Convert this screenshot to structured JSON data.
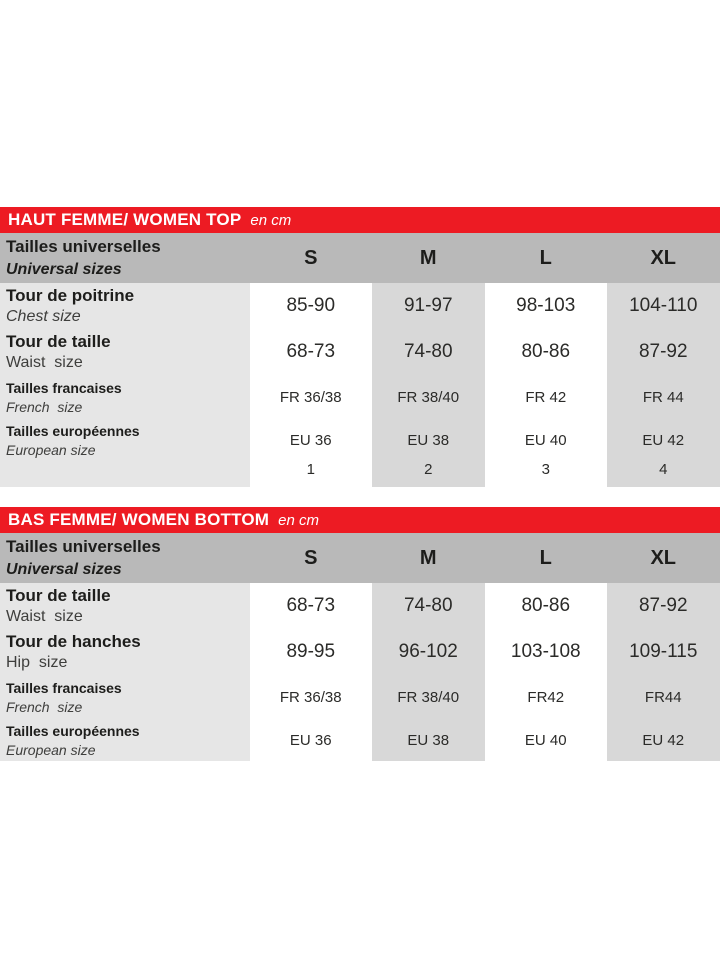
{
  "colors": {
    "accent_red": "#ed1b23",
    "header_gray": "#b9b9b9",
    "column_gray": "#d8d8d8",
    "label_column_gray": "#e6e6e6",
    "text_dark": "#1d1d1b"
  },
  "tables": [
    {
      "title": "HAUT FEMME/ WOMEN TOP",
      "unit": "en cm",
      "header": {
        "label_fr": "Tailles universelles",
        "label_en": "Universal sizes",
        "sizes": [
          "S",
          "M",
          "L",
          "XL"
        ]
      },
      "rows": [
        {
          "label_fr": "Tour de poitrine",
          "label_en": "Chest size",
          "values": [
            "85-90",
            "91-97",
            "98-103",
            "104-110"
          ]
        },
        {
          "label_fr": "Tour de taille",
          "label_en": "Waist  size",
          "values": [
            "68-73",
            "74-80",
            "80-86",
            "87-92"
          ]
        },
        {
          "label_fr": "Tailles francaises",
          "label_en": "French  size",
          "values": [
            "FR 36/38",
            "FR 38/40",
            "FR 42",
            "FR 44"
          ]
        },
        {
          "label_fr": "Tailles européennes",
          "label_en": "European size",
          "values": [
            "EU 36",
            "EU 38",
            "EU 40",
            "EU 42"
          ]
        },
        {
          "label_fr": "",
          "label_en": "",
          "values": [
            "1",
            "2",
            "3",
            "4"
          ]
        }
      ]
    },
    {
      "title": "BAS FEMME/ WOMEN BOTTOM",
      "unit": "en cm",
      "header": {
        "label_fr": "Tailles universelles",
        "label_en": "Universal sizes",
        "sizes": [
          "S",
          "M",
          "L",
          "XL"
        ]
      },
      "rows": [
        {
          "label_fr": "Tour de taille",
          "label_en": "Waist  size",
          "values": [
            "68-73",
            "74-80",
            "80-86",
            "87-92"
          ]
        },
        {
          "label_fr": "Tour de hanches",
          "label_en": "Hip  size",
          "values": [
            "89-95",
            "96-102",
            "103-108",
            "109-115"
          ]
        },
        {
          "label_fr": "Tailles francaises",
          "label_en": "French  size",
          "values": [
            "FR 36/38",
            "FR 38/40",
            "FR42",
            "FR44"
          ]
        },
        {
          "label_fr": "Tailles européennes",
          "label_en": "European size",
          "values": [
            "EU 36",
            "EU 38",
            "EU 40",
            "EU 42"
          ]
        }
      ]
    }
  ]
}
